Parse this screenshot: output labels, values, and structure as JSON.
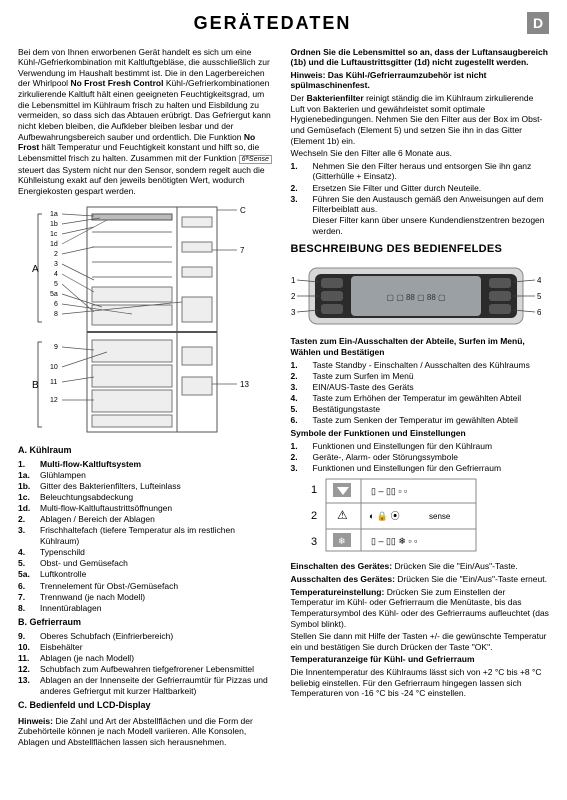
{
  "header": {
    "title": "GERÄTEDATEN",
    "badge": "D"
  },
  "intro": {
    "p1a": "Bei dem von Ihnen erworbenen Gerät handelt es sich um eine Kühl-/Gefrierkombination mit Kaltluftgebläse, die ausschließlich zur Verwendung im Haushalt bestimmt ist. Die in den Lagerbereichen der Whirlpool ",
    "p1b": "No Frost Fresh Control",
    "p1c": " Kühl-/Gefrierkombinationen zirkulierende Kaltluft hält einen geeigneten Feuchtigkeitsgrad, um die Lebensmittel im Kühlraum frisch zu halten und Eisbildung zu vermeiden, so dass sich das Abtauen erübrigt. Das Gefriergut kann nicht kleben bleiben, die Aufkleber bleiben lesbar und der Aufbewahrungsbereich sauber und ordentlich. Die Funktion ",
    "p1d": "No Frost",
    "p1e": " hält Temperatur und Feuchtigkeit konstant und hilft so, die Lebensmittel frisch zu halten. Zusammen mit der Funktion ",
    "p1f": " steuert das System nicht nur den Sensor, sondern regelt auch die Kühlleistung exakt auf den jeweils benötigten Wert, wodurch Energiekosten gespart werden.",
    "sense": "6ᵗʰSense"
  },
  "diagA": {
    "labelsLeft": [
      "1a",
      "1b",
      "1c",
      "1d",
      "2",
      "3",
      "4",
      "5",
      "5a",
      "6",
      "8"
    ],
    "labelsLeft2": [
      "9",
      "B",
      "10",
      "11",
      "12"
    ],
    "letterA": "A",
    "letterB": "B",
    "rightC": "C",
    "right7": "7",
    "right13": "13",
    "stroke": "#666"
  },
  "listA_head": "A. Kühlraum",
  "listA": [
    {
      "n": "1.",
      "t": "Multi-flow-Kaltluftsystem",
      "b": true
    },
    {
      "n": "1a.",
      "t": "Glühlampen"
    },
    {
      "n": "1b.",
      "t": "Gitter des Bakterienfilters, Lufteinlass"
    },
    {
      "n": "1c.",
      "t": "Beleuchtungsabdeckung"
    },
    {
      "n": "1d.",
      "t": "Multi-flow-Kaltluftaustrittsöffnungen"
    },
    {
      "n": "2.",
      "t": "Ablagen / Bereich der Ablagen"
    },
    {
      "n": "3.",
      "t": "Frischhaltefach (tiefere Temperatur als im restlichen Kühlraum)"
    },
    {
      "n": "4.",
      "t": "Typenschild"
    },
    {
      "n": "5.",
      "t": "Obst- und Gemüsefach"
    },
    {
      "n": "5a.",
      "t": "Luftkontrolle"
    },
    {
      "n": "6.",
      "t": "Trennelement für Obst-/Gemüsefach"
    },
    {
      "n": "7.",
      "t": "Trennwand (je nach Modell)"
    },
    {
      "n": "8.",
      "t": "Innentürablagen"
    }
  ],
  "listB_head": "B. Gefrierraum",
  "listB": [
    {
      "n": "9.",
      "t": "Oberes Schubfach (Einfrierbereich)"
    },
    {
      "n": "10.",
      "t": "Eisbehälter"
    },
    {
      "n": "11.",
      "t": "Ablagen (je nach Modell)"
    },
    {
      "n": "12.",
      "t": "Schubfach zum Aufbewahren tiefgefrorener Lebensmittel"
    },
    {
      "n": "13.",
      "t": "Ablagen an der Innenseite der Gefrierraumtür für Pizzas und anderes Gefriergut mit kurzer Haltbarkeit)"
    }
  ],
  "listC_head": "C. Bedienfeld und LCD-Display",
  "hinweis1": {
    "lbl": "Hinweis:",
    "txt": " Die Zahl und Art der Abstellflächen und die Form der Zubehörteile können je nach Modell variieren. Alle Konsolen, Ablagen und Abstellflächen lassen sich herausnehmen."
  },
  "right": {
    "ordnen_head": "Ordnen Sie die Lebensmittel so an, dass der Luftansaugbereich (1b) und die Luftaustrittsgitter (1d) nicht zugestellt werden.",
    "hinweis2": {
      "lbl": "Hinweis: Das Kühl-/Gefrierraumzubehör ist nicht spülmaschinenfest."
    },
    "bakt1a": "Der ",
    "bakt1b": "Bakterienfilter",
    "bakt1c": " reinigt ständig die im Kühlraum zirkulierende Luft von Bakterien und gewährleistet somit optimale Hygienebedingungen. Nehmen Sie den Filter aus der Box im Obst- und Gemüsefach (Element 5) und setzen Sie ihn in das Gitter (Element 1b) ein.",
    "bakt2": "Wechseln Sie den Filter alle 6 Monate aus.",
    "filtersteps": [
      {
        "n": "1.",
        "t": "Nehmen Sie den Filter heraus und entsorgen Sie ihn ganz (Gitterhülle + Einsatz)."
      },
      {
        "n": "2.",
        "t": "Ersetzen Sie Filter und Gitter durch Neuteile."
      },
      {
        "n": "3.",
        "t": "Führen Sie den Austausch gemäß den Anweisungen auf dem Filterbeiblatt aus."
      },
      {
        "n": "",
        "t": "Dieser Filter kann über unsere Kundendienstzentren bezogen werden."
      }
    ],
    "panel_title": "BESCHREIBUNG DES BEDIENFELDES",
    "panel_nums_left": [
      "1",
      "2",
      "3"
    ],
    "panel_nums_right": [
      "4",
      "5",
      "6"
    ],
    "tasten_head": "Tasten zum Ein-/Ausschalten der Abteile, Surfen im Menü, Wählen und Bestätigen",
    "tasten": [
      {
        "n": "1.",
        "t": "Taste Standby - Einschalten / Ausschalten des Kühlraums"
      },
      {
        "n": "2.",
        "t": "Taste zum Surfen im Menü"
      },
      {
        "n": "3.",
        "t": "EIN/AUS-Taste des Geräts"
      },
      {
        "n": "4.",
        "t": "Taste zum Erhöhen der Temperatur im gewählten Abteil"
      },
      {
        "n": "5.",
        "t": "Bestätigungstaste"
      },
      {
        "n": "6.",
        "t": "Taste zum Senken der Temperatur im gewählten Abteil"
      }
    ],
    "symb_head": "Symbole der Funktionen und Einstellungen",
    "symb": [
      {
        "n": "1.",
        "t": "Funktionen und Einstellungen für den Kühlraum"
      },
      {
        "n": "2.",
        "t": "Geräte-, Alarm- oder Störungssymbole"
      },
      {
        "n": "3.",
        "t": "Funktionen und Einstellungen für den Gefrierraum"
      }
    ],
    "mini_nums": [
      "1",
      "2",
      "3"
    ],
    "sense_label": "sense",
    "ein_lbl": "Einschalten des Gerätes:",
    "ein_txt": " Drücken Sie die \"Ein/Aus\"-Taste.",
    "aus_lbl": "Ausschalten des Gerätes:",
    "aus_txt": " Drücken Sie die \"Ein/Aus\"-Taste erneut.",
    "temp_lbl": "Temperatureinstellung:",
    "temp_txt": " Drücken Sie zum Einstellen der Temperatur im Kühl- oder Gefrierraum die Menütaste, bis das Temperatursymbol des Kühl- oder des Gefrierraums aufleuchtet (das Symbol blinkt).",
    "temp2": "Stellen Sie dann mit Hilfe der Tasten +/- die gewünschte Temperatur ein und bestätigen Sie durch Drücken der Taste \"OK\".",
    "anz_lbl": "Temperaturanzeige für Kühl- und Gefrierraum",
    "anz_txt": "Die Innentemperatur des Kühlraums lässt sich von +2 °C bis +8 °C beliebig einstellen. Für den Gefrierraum hingegen lassen sich Temperaturen von -16 °C bis -24 °C einstellen."
  },
  "colors": {
    "panel_bg": "#d5d7d8",
    "panel_inner": "#2b2b2b",
    "screen": "#9aa0a3"
  }
}
